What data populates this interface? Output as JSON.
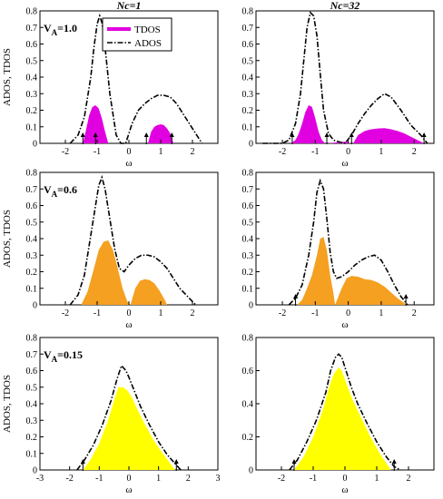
{
  "colors": {
    "row1": "#e000e0",
    "row2": "#f5a020",
    "row3": "#ffff00",
    "ados": "#000000"
  },
  "legend": {
    "tdos": "TDOS",
    "ados": "ADOS"
  },
  "chart_data": [
    {
      "type": "area",
      "title": "Nc=1",
      "annotation": "",
      "xlabel": "ω",
      "ylabel": "ADOS, TDOS",
      "xlim": [
        -2.8,
        2.8
      ],
      "ylim": [
        0,
        0.8
      ],
      "xticks": [
        -2,
        -1,
        0,
        1,
        2
      ],
      "xtick_labels": [
        "-2",
        "-1",
        "0",
        "1",
        "2"
      ],
      "yticks": [
        0,
        0.1,
        0.2,
        0.3,
        0.4,
        0.5,
        0.6,
        0.7,
        0.8
      ],
      "ytick_labels": [
        "0",
        "0.1",
        "0.2",
        "0.3",
        "0.4",
        "0.5",
        "0.6",
        "0.7",
        "0.8"
      ],
      "series": [
        {
          "name": "ADOS",
          "style": "dash-dot",
          "x": [
            -1.85,
            -1.6,
            -1.4,
            -1.2,
            -1.1,
            -1.0,
            -0.92,
            -0.85,
            -0.75,
            -0.6,
            -0.4,
            -0.25,
            -0.1,
            0.1,
            0.3,
            0.5,
            0.7,
            0.9,
            1.1,
            1.3,
            1.5,
            1.8,
            2.1,
            2.3
          ],
          "y": [
            0.0,
            0.05,
            0.16,
            0.4,
            0.58,
            0.72,
            0.77,
            0.73,
            0.58,
            0.3,
            0.05,
            0.0,
            0.0,
            0.12,
            0.2,
            0.24,
            0.27,
            0.29,
            0.29,
            0.28,
            0.24,
            0.15,
            0.06,
            0.0
          ]
        },
        {
          "name": "TDOS",
          "style": "fill",
          "x": [
            -1.45,
            -1.35,
            -1.25,
            -1.15,
            -1.05,
            -0.95,
            -0.85,
            -0.75,
            -0.65
          ],
          "y": [
            0.0,
            0.08,
            0.17,
            0.22,
            0.23,
            0.21,
            0.15,
            0.07,
            0.0
          ]
        },
        {
          "name": "TDOS",
          "style": "fill",
          "x": [
            0.6,
            0.7,
            0.8,
            0.9,
            1.0,
            1.1,
            1.2,
            1.3,
            1.4
          ],
          "y": [
            0.0,
            0.07,
            0.1,
            0.11,
            0.115,
            0.11,
            0.09,
            0.06,
            0.0
          ]
        }
      ],
      "arrows_x": [
        -1.45,
        -1.05,
        0.55,
        1.35
      ]
    },
    {
      "type": "area",
      "title": "Nc=32",
      "annotation": "",
      "xlabel": "ω",
      "ylabel": "",
      "xlim": [
        -2.8,
        2.6
      ],
      "ylim": [
        0,
        0.8
      ],
      "xticks": [
        -2,
        -1,
        0,
        1,
        2
      ],
      "xtick_labels": [
        "-2",
        "-1",
        "0",
        "1",
        "2"
      ],
      "yticks": [
        0,
        0.1,
        0.2,
        0.3,
        0.4,
        0.5,
        0.6,
        0.7,
        0.8
      ],
      "ytick_labels": [
        "0",
        "0.1",
        "0.2",
        "0.3",
        "0.4",
        "0.5",
        "0.6",
        "0.7",
        "0.8"
      ],
      "series": [
        {
          "name": "ADOS",
          "style": "dash-dot",
          "x": [
            -2.6,
            -2.0,
            -1.8,
            -1.6,
            -1.45,
            -1.35,
            -1.25,
            -1.15,
            -1.05,
            -0.95,
            -0.85,
            -0.75,
            -0.6,
            -0.45,
            -0.3,
            -0.1,
            0.1,
            0.3,
            0.5,
            0.7,
            0.9,
            1.1,
            1.3,
            1.6,
            1.9,
            2.2,
            2.4
          ],
          "y": [
            0.0,
            0.0,
            0.02,
            0.12,
            0.3,
            0.5,
            0.7,
            0.79,
            0.77,
            0.65,
            0.42,
            0.2,
            0.06,
            0.02,
            0.01,
            0.0,
            0.05,
            0.12,
            0.18,
            0.23,
            0.27,
            0.3,
            0.28,
            0.2,
            0.11,
            0.05,
            0.0
          ]
        },
        {
          "name": "TDOS",
          "style": "fill",
          "x": [
            -1.75,
            -1.6,
            -1.5,
            -1.4,
            -1.3,
            -1.2,
            -1.1,
            -1.0,
            -0.9,
            -0.8,
            -0.7
          ],
          "y": [
            0.0,
            0.02,
            0.06,
            0.12,
            0.19,
            0.23,
            0.22,
            0.15,
            0.07,
            0.02,
            0.0
          ]
        },
        {
          "name": "TDOS",
          "style": "fill",
          "x": [
            -0.65,
            -0.4,
            -0.1,
            0.1
          ],
          "y": [
            0.0,
            0.005,
            0.01,
            0.0
          ]
        },
        {
          "name": "TDOS",
          "style": "fill",
          "x": [
            0.15,
            0.3,
            0.5,
            0.7,
            0.9,
            1.1,
            1.3,
            1.5,
            1.7,
            1.9,
            2.1,
            2.3
          ],
          "y": [
            0.0,
            0.05,
            0.075,
            0.085,
            0.09,
            0.092,
            0.085,
            0.075,
            0.06,
            0.04,
            0.02,
            0.0
          ]
        }
      ],
      "arrows_x": [
        -1.7,
        -0.65,
        0.1,
        2.3
      ]
    },
    {
      "type": "area",
      "title": "",
      "annotation": "",
      "xlabel": "ω",
      "ylabel": "ADOS, TDOS",
      "xlim": [
        -2.8,
        2.8
      ],
      "ylim": [
        0,
        0.8
      ],
      "xticks": [
        -2,
        -1,
        0,
        1,
        2
      ],
      "xtick_labels": [
        "-2",
        "-1",
        "0",
        "1",
        "2"
      ],
      "yticks": [
        0,
        0.1,
        0.2,
        0.3,
        0.4,
        0.5,
        0.6,
        0.7,
        0.8
      ],
      "ytick_labels": [
        "0",
        "0.1",
        "0.2",
        "0.3",
        "0.4",
        "0.5",
        "0.6",
        "0.7",
        "0.8"
      ],
      "series": [
        {
          "name": "ADOS",
          "style": "dash-dot",
          "x": [
            -1.85,
            -1.6,
            -1.4,
            -1.2,
            -1.05,
            -0.95,
            -0.85,
            -0.75,
            -0.6,
            -0.45,
            -0.3,
            -0.15,
            0.0,
            0.2,
            0.4,
            0.6,
            0.8,
            1.0,
            1.2,
            1.4,
            1.6,
            1.9,
            2.1
          ],
          "y": [
            0.0,
            0.06,
            0.18,
            0.42,
            0.6,
            0.72,
            0.77,
            0.7,
            0.52,
            0.34,
            0.22,
            0.2,
            0.24,
            0.28,
            0.3,
            0.3,
            0.29,
            0.26,
            0.22,
            0.16,
            0.1,
            0.04,
            0.0
          ]
        },
        {
          "name": "TDOS",
          "style": "fill",
          "x": [
            -1.5,
            -1.3,
            -1.1,
            -0.95,
            -0.8,
            -0.65,
            -0.5,
            -0.35,
            -0.2,
            -0.05,
            0.05
          ],
          "y": [
            0.0,
            0.08,
            0.22,
            0.33,
            0.38,
            0.39,
            0.33,
            0.22,
            0.1,
            0.02,
            0.0
          ]
        },
        {
          "name": "TDOS",
          "style": "fill",
          "x": [
            0.05,
            0.2,
            0.35,
            0.5,
            0.65,
            0.8,
            0.95,
            1.1,
            1.2
          ],
          "y": [
            0.0,
            0.1,
            0.145,
            0.155,
            0.15,
            0.13,
            0.09,
            0.04,
            0.0
          ]
        }
      ],
      "arrows_x": []
    },
    {
      "type": "area",
      "title": "",
      "annotation": "",
      "xlabel": "ω",
      "ylabel": "",
      "xlim": [
        -2.8,
        2.6
      ],
      "ylim": [
        0,
        0.8
      ],
      "xticks": [
        -2,
        -1,
        0,
        1,
        2
      ],
      "xtick_labels": [
        "-2",
        "-1",
        "0",
        "1",
        "2"
      ],
      "yticks": [
        0,
        0.1,
        0.2,
        0.3,
        0.4,
        0.5,
        0.6,
        0.7,
        0.8
      ],
      "ytick_labels": [
        "0",
        "0.1",
        "0.2",
        "0.3",
        "0.4",
        "0.5",
        "0.6",
        "0.7",
        "0.8"
      ],
      "series": [
        {
          "name": "ADOS",
          "style": "dash-dot",
          "x": [
            -1.8,
            -1.6,
            -1.4,
            -1.2,
            -1.05,
            -0.95,
            -0.85,
            -0.75,
            -0.65,
            -0.55,
            -0.45,
            -0.35,
            -0.2,
            0.0,
            0.2,
            0.4,
            0.6,
            0.8,
            1.0,
            1.2,
            1.4,
            1.6,
            1.8
          ],
          "y": [
            0.0,
            0.04,
            0.12,
            0.3,
            0.5,
            0.68,
            0.75,
            0.7,
            0.52,
            0.32,
            0.2,
            0.16,
            0.17,
            0.2,
            0.24,
            0.27,
            0.29,
            0.3,
            0.27,
            0.2,
            0.12,
            0.05,
            0.0
          ]
        },
        {
          "name": "TDOS",
          "style": "fill",
          "x": [
            -1.55,
            -1.4,
            -1.25,
            -1.1,
            -0.95,
            -0.85,
            -0.75,
            -0.65,
            -0.55,
            -0.45,
            -0.4
          ],
          "y": [
            0.0,
            0.03,
            0.1,
            0.18,
            0.3,
            0.4,
            0.41,
            0.33,
            0.18,
            0.07,
            0.0
          ]
        },
        {
          "name": "TDOS",
          "style": "fill",
          "x": [
            -0.4,
            -0.2,
            -0.05,
            0.1,
            0.3,
            0.5,
            0.7,
            0.9,
            1.1,
            1.3,
            1.5,
            1.7,
            1.75
          ],
          "y": [
            0.0,
            0.1,
            0.16,
            0.175,
            0.17,
            0.155,
            0.15,
            0.135,
            0.11,
            0.075,
            0.04,
            0.01,
            0.0
          ]
        }
      ],
      "arrows_x": [
        -1.6,
        1.75
      ]
    },
    {
      "type": "area",
      "title": "",
      "annotation": "",
      "xlabel": "ω",
      "ylabel": "ADOS, TDOS",
      "xlim": [
        -3,
        3
      ],
      "ylim": [
        0,
        0.8
      ],
      "xticks": [
        -3,
        -2,
        -1,
        0,
        1,
        2,
        3
      ],
      "xtick_labels": [
        "-3",
        "-2",
        "-1",
        "0",
        "1",
        "2",
        "3"
      ],
      "yticks": [
        0,
        0.1,
        0.2,
        0.3,
        0.4,
        0.5,
        0.6,
        0.7,
        0.8
      ],
      "ytick_labels": [
        "0",
        "0.1",
        "0.2",
        "0.3",
        "0.4",
        "0.5",
        "0.6",
        "0.7",
        "0.8"
      ],
      "series": [
        {
          "name": "ADOS",
          "style": "dash-dot",
          "x": [
            -1.75,
            -1.5,
            -1.2,
            -0.9,
            -0.6,
            -0.4,
            -0.25,
            -0.1,
            0.0,
            0.2,
            0.4,
            0.7,
            1.0,
            1.3,
            1.6,
            1.75
          ],
          "y": [
            0.0,
            0.06,
            0.15,
            0.27,
            0.42,
            0.55,
            0.63,
            0.6,
            0.56,
            0.47,
            0.38,
            0.27,
            0.17,
            0.09,
            0.03,
            0.0
          ]
        },
        {
          "name": "TDOS",
          "style": "fill",
          "x": [
            -1.55,
            -1.3,
            -1.0,
            -0.7,
            -0.5,
            -0.35,
            -0.2,
            -0.05,
            0.1,
            0.3,
            0.5,
            0.8,
            1.1,
            1.35,
            1.55
          ],
          "y": [
            0.0,
            0.06,
            0.16,
            0.3,
            0.42,
            0.5,
            0.5,
            0.48,
            0.44,
            0.36,
            0.29,
            0.19,
            0.11,
            0.05,
            0.0
          ]
        }
      ],
      "arrows_x": [
        -1.55,
        1.6
      ]
    },
    {
      "type": "area",
      "title": "",
      "annotation": "",
      "xlabel": "ω",
      "ylabel": "",
      "xlim": [
        -2.8,
        2.8
      ],
      "ylim": [
        0,
        0.8
      ],
      "xticks": [
        -2,
        -1,
        0,
        1,
        2
      ],
      "xtick_labels": [
        "-2",
        "-1",
        "0",
        "1",
        "2"
      ],
      "yticks": [
        0,
        0.2,
        0.4,
        0.6,
        0.8
      ],
      "ytick_labels": [
        "0",
        "0.2",
        "0.4",
        "0.6",
        "0.8"
      ],
      "series": [
        {
          "name": "ADOS",
          "style": "dash-dot",
          "x": [
            -1.75,
            -1.5,
            -1.2,
            -0.9,
            -0.6,
            -0.45,
            -0.3,
            -0.2,
            -0.1,
            0.0,
            0.2,
            0.4,
            0.7,
            1.0,
            1.3,
            1.55,
            1.75
          ],
          "y": [
            0.0,
            0.06,
            0.17,
            0.3,
            0.47,
            0.6,
            0.68,
            0.7,
            0.68,
            0.62,
            0.5,
            0.4,
            0.28,
            0.17,
            0.08,
            0.02,
            0.0
          ]
        },
        {
          "name": "TDOS",
          "style": "fill",
          "x": [
            -1.6,
            -1.3,
            -1.0,
            -0.7,
            -0.5,
            -0.35,
            -0.2,
            -0.1,
            0.05,
            0.25,
            0.5,
            0.8,
            1.1,
            1.3,
            1.45
          ],
          "y": [
            0.0,
            0.08,
            0.2,
            0.36,
            0.5,
            0.58,
            0.62,
            0.6,
            0.52,
            0.42,
            0.32,
            0.2,
            0.1,
            0.04,
            0.0
          ]
        }
      ],
      "arrows_x": [
        -1.6,
        1.55
      ]
    }
  ]
}
